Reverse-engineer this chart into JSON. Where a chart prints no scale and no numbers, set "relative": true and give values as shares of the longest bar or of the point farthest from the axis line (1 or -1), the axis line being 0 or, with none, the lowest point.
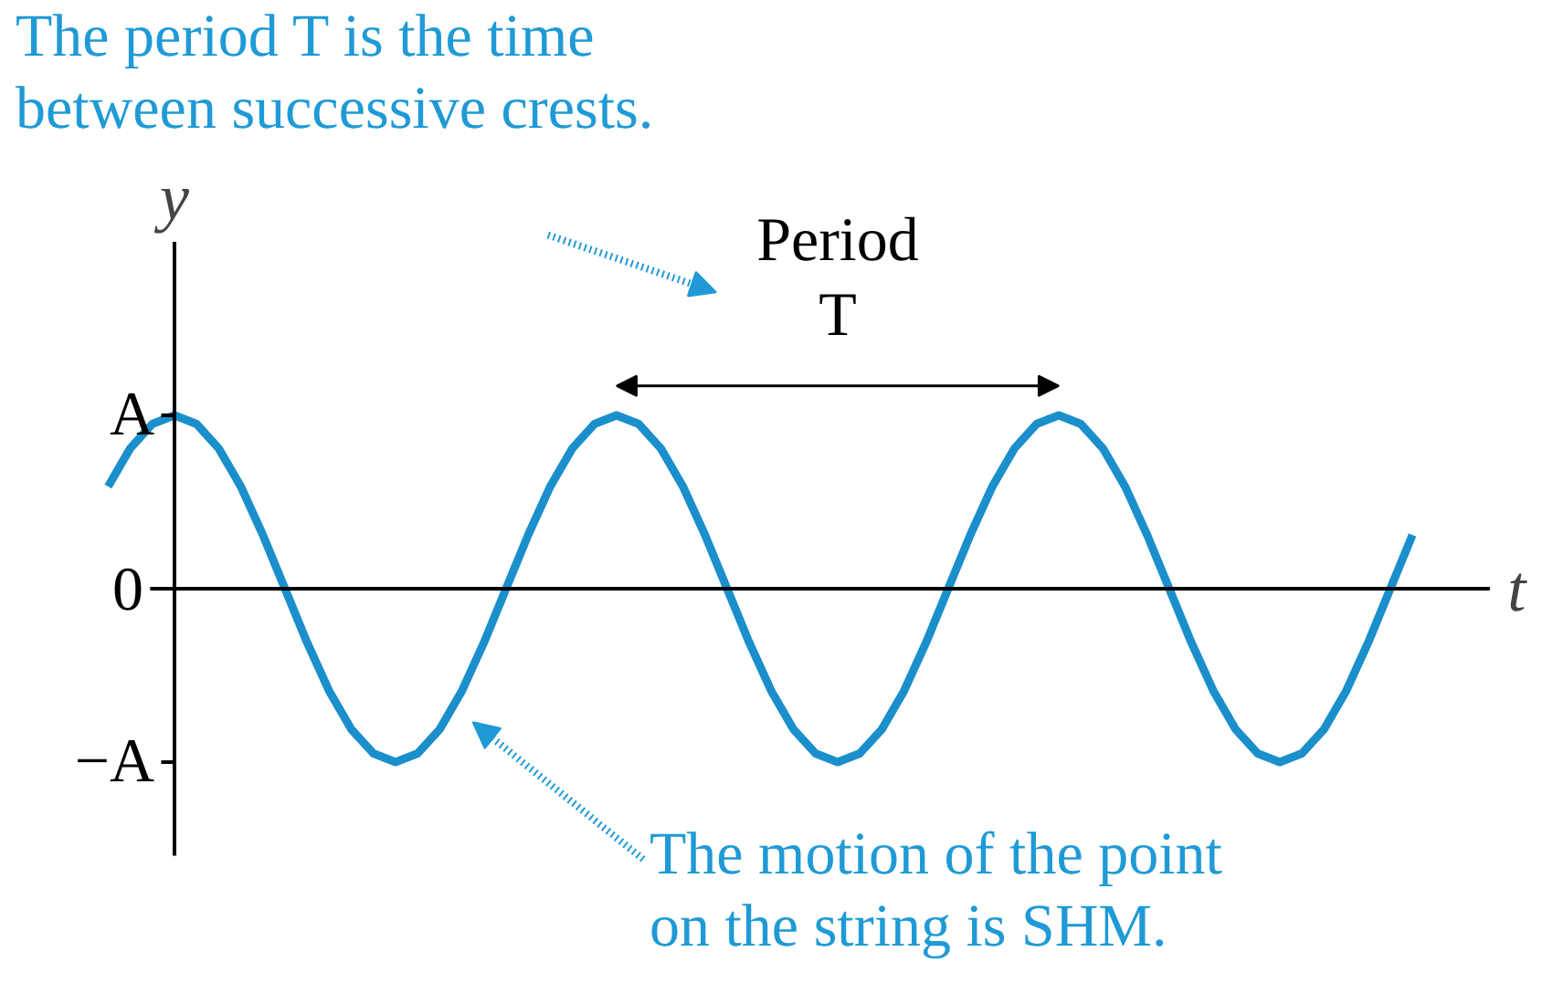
{
  "chart_data": {
    "type": "line",
    "xlabel": "t",
    "ylabel": "y",
    "categories": [
      null,
      null,
      null,
      null,
      null,
      null,
      null,
      null,
      null,
      null,
      null,
      null,
      null,
      null,
      null,
      null,
      null,
      null,
      null,
      null,
      null,
      null,
      null,
      null,
      null,
      null,
      null,
      null,
      null,
      null,
      null,
      null,
      null,
      null,
      null,
      null,
      null,
      null,
      null,
      null,
      null,
      null,
      null,
      null,
      null,
      null,
      null,
      null,
      null,
      null,
      null,
      null,
      null,
      null,
      null,
      null,
      null,
      null,
      null,
      null
    ],
    "series": [
      {
        "color": "#1a8fcb",
        "values": [
          0.59,
          0.81,
          0.95,
          1,
          0.95,
          0.81,
          0.59,
          0.31,
          0,
          -0.31,
          -0.59,
          -0.81,
          -0.95,
          -1,
          -0.95,
          -0.81,
          -0.59,
          -0.31,
          0,
          0.31,
          0.59,
          0.81,
          0.95,
          1,
          0.95,
          0.81,
          0.59,
          0.31,
          0,
          -0.31,
          -0.59,
          -0.81,
          -0.95,
          -1,
          -0.95,
          -0.81,
          -0.59,
          -0.31,
          0,
          0.31,
          0.59,
          0.81,
          0.95,
          1,
          0.95,
          0.81,
          0.59,
          0.31,
          0,
          -0.31,
          -0.59,
          -0.81,
          -0.95,
          -1,
          -0.95,
          -0.81,
          -0.59,
          -0.31,
          0,
          0.31
        ]
      }
    ],
    "relative": true,
    "marker": "none",
    "line_style": "solid",
    "annotations": [
      "The period T is the time\nbetween successive crests.",
      "Period\nT",
      "The motion of the point\non the string is SHM.",
      "A",
      "0",
      "−A"
    ]
  }
}
